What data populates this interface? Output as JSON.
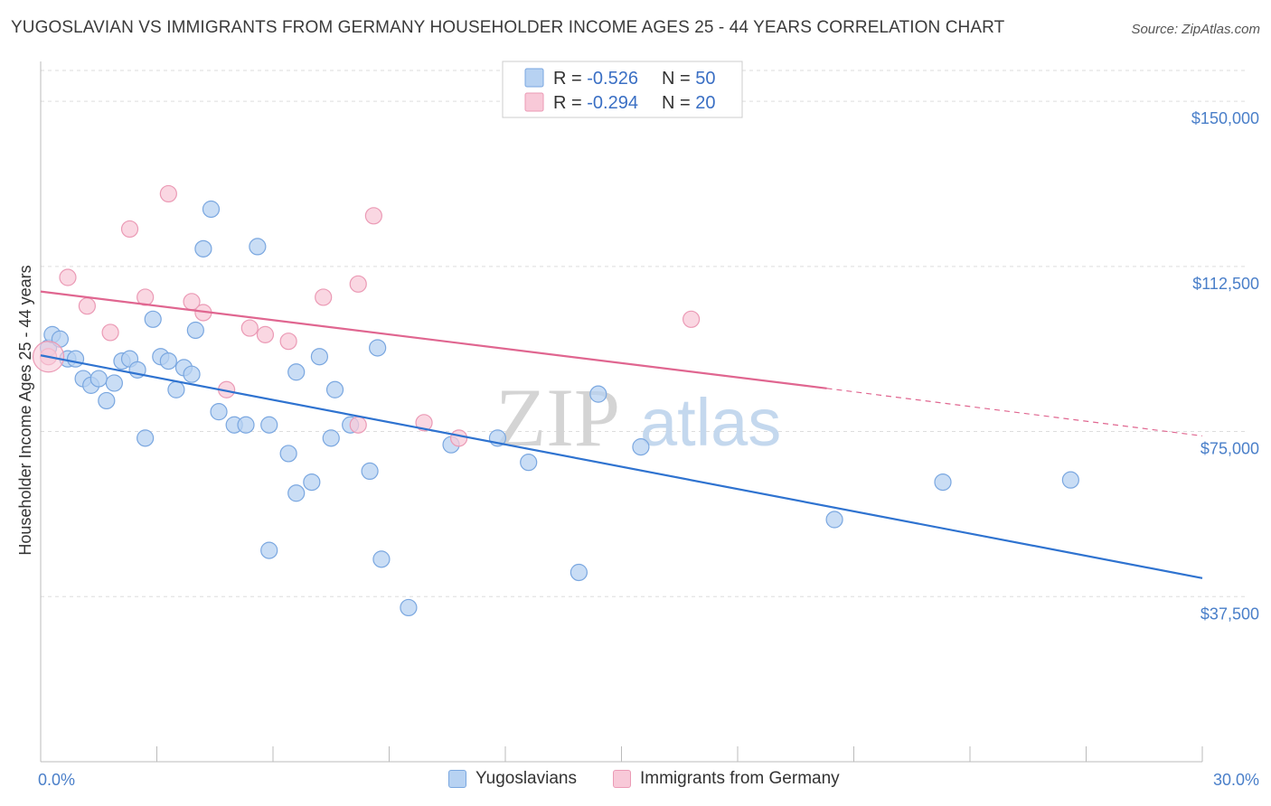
{
  "title": "YUGOSLAVIAN VS IMMIGRANTS FROM GERMANY HOUSEHOLDER INCOME AGES 25 - 44 YEARS CORRELATION CHART",
  "source": "Source: ZipAtlas.com",
  "watermark": {
    "part1": "ZIP",
    "part2": "atlas"
  },
  "colors": {
    "blue_fill": "#b7d2f2",
    "blue_stroke": "#7aa7e0",
    "blue_line": "#2f73d0",
    "pink_fill": "#f8c9d8",
    "pink_stroke": "#eb9ab5",
    "pink_line": "#e06690",
    "tick_text": "#4a7fc9",
    "grid": "#dddddd"
  },
  "legend": {
    "rows": [
      {
        "r_label": "R = ",
        "r_value": "-0.526",
        "n_label": "N = ",
        "n_value": "50"
      },
      {
        "r_label": "R = ",
        "r_value": "-0.294",
        "n_label": "N = ",
        "n_value": "20"
      }
    ]
  },
  "bottom_legend": [
    "Yugoslavians",
    "Immigrants from Germany"
  ],
  "chart_data": {
    "type": "scatter",
    "title": "YUGOSLAVIAN VS IMMIGRANTS FROM GERMANY HOUSEHOLDER INCOME AGES 25 - 44 YEARS CORRELATION CHART",
    "xlabel": "",
    "ylabel": "Householder Income Ages 25 - 44 years",
    "xlim": [
      0,
      30
    ],
    "ylim": [
      0,
      157000
    ],
    "x_tick_labels": [
      "0.0%",
      "30.0%"
    ],
    "y_ticks": [
      37500,
      75000,
      112500,
      150000
    ],
    "y_tick_labels": [
      "$37,500",
      "$75,000",
      "$112,500",
      "$150,000"
    ],
    "grid": true,
    "legend_position": "top-center",
    "series": [
      {
        "name": "Yugoslavians",
        "r": -0.526,
        "n": 50,
        "trend": {
          "x": [
            0,
            30
          ],
          "y": [
            92300,
            41700
          ]
        },
        "points": [
          [
            0.2,
            94000
          ],
          [
            0.3,
            97000
          ],
          [
            0.5,
            96000
          ],
          [
            0.7,
            91500
          ],
          [
            0.9,
            91500
          ],
          [
            1.1,
            87000
          ],
          [
            1.3,
            85500
          ],
          [
            1.5,
            87000
          ],
          [
            1.7,
            82000
          ],
          [
            1.9,
            86000
          ],
          [
            2.1,
            91000
          ],
          [
            2.3,
            91500
          ],
          [
            2.5,
            89000
          ],
          [
            2.7,
            73500
          ],
          [
            2.9,
            100500
          ],
          [
            3.1,
            92000
          ],
          [
            3.3,
            91000
          ],
          [
            3.5,
            84500
          ],
          [
            3.7,
            89500
          ],
          [
            3.9,
            88000
          ],
          [
            4.0,
            98000
          ],
          [
            4.2,
            116500
          ],
          [
            4.4,
            125500
          ],
          [
            4.6,
            79500
          ],
          [
            5.0,
            76500
          ],
          [
            5.3,
            76500
          ],
          [
            5.6,
            117000
          ],
          [
            5.9,
            48000
          ],
          [
            5.9,
            76500
          ],
          [
            6.4,
            70000
          ],
          [
            6.6,
            88500
          ],
          [
            6.6,
            61000
          ],
          [
            7.0,
            63500
          ],
          [
            7.2,
            92000
          ],
          [
            7.5,
            73500
          ],
          [
            7.6,
            84500
          ],
          [
            8.0,
            76500
          ],
          [
            8.5,
            66000
          ],
          [
            8.7,
            94000
          ],
          [
            8.8,
            46000
          ],
          [
            9.5,
            35000
          ],
          [
            10.6,
            72000
          ],
          [
            11.8,
            73500
          ],
          [
            12.6,
            68000
          ],
          [
            13.9,
            43000
          ],
          [
            14.4,
            83500
          ],
          [
            15.5,
            71500
          ],
          [
            20.5,
            55000
          ],
          [
            23.3,
            63500
          ],
          [
            26.6,
            64000
          ]
        ]
      },
      {
        "name": "Immigrants from Germany",
        "r": -0.294,
        "n": 20,
        "trend": {
          "x": [
            0,
            20.3
          ],
          "y": [
            106800,
            84800
          ]
        },
        "trend_extension": {
          "x": [
            20.3,
            30
          ],
          "y": [
            84800,
            74000
          ]
        },
        "points": [
          [
            0.2,
            92000
          ],
          [
            0.7,
            110000
          ],
          [
            1.2,
            103500
          ],
          [
            1.8,
            97500
          ],
          [
            2.3,
            121000
          ],
          [
            2.7,
            105500
          ],
          [
            3.3,
            129000
          ],
          [
            3.9,
            104500
          ],
          [
            4.2,
            102000
          ],
          [
            4.8,
            84500
          ],
          [
            5.4,
            98500
          ],
          [
            5.8,
            97000
          ],
          [
            6.4,
            95500
          ],
          [
            7.3,
            105500
          ],
          [
            8.2,
            76500
          ],
          [
            8.2,
            108500
          ],
          [
            8.6,
            124000
          ],
          [
            9.9,
            77000
          ],
          [
            10.8,
            73500
          ],
          [
            16.8,
            100500
          ]
        ]
      }
    ]
  }
}
